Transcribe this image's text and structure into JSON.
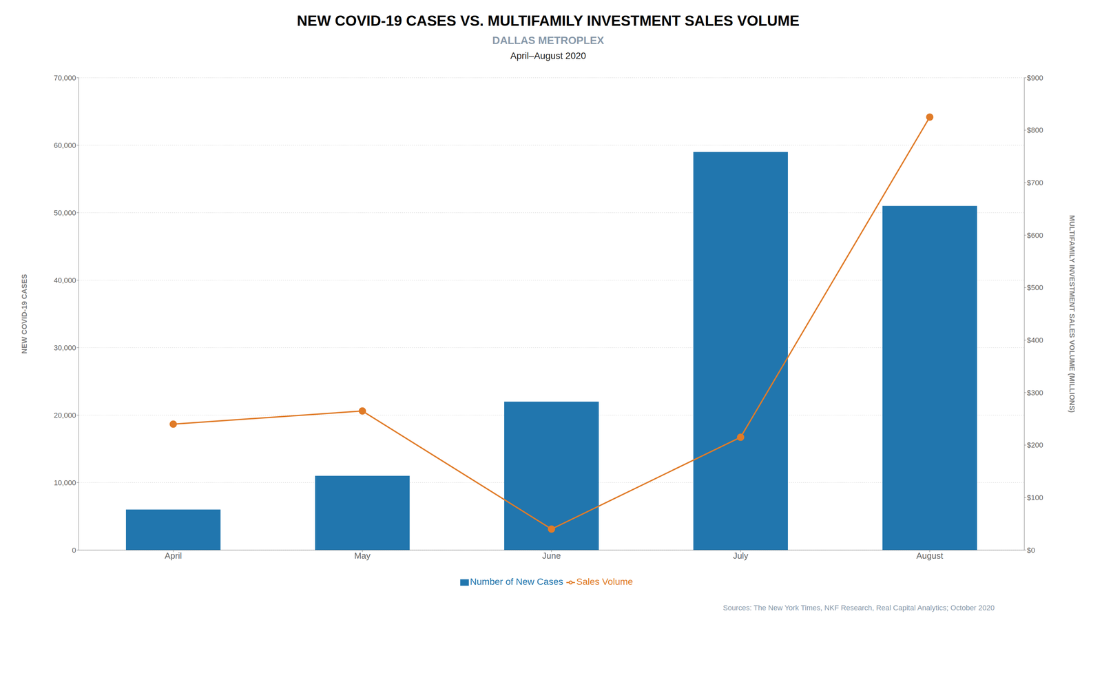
{
  "chart_data": {
    "type": "bar",
    "title": "NEW COVID-19 CASES VS. MULTIFAMILY INVESTMENT SALES VOLUME",
    "subtitle": "DALLAS METROPLEX",
    "annotations": [
      "April–August 2020",
      "Sources: The New York Times, NKF Research, Real Capital Analytics; October 2020"
    ],
    "categories": [
      "April",
      "May",
      "June",
      "July",
      "August"
    ],
    "series": [
      {
        "name": "Number of New Cases",
        "type": "bar",
        "color": "#2176ae",
        "values": [
          6000,
          11000,
          22000,
          59000,
          51000
        ]
      },
      {
        "name": "Sales Volume",
        "type": "line",
        "color": "#e07b28",
        "marker": "circle",
        "axis": "y2",
        "values": [
          240,
          265,
          40,
          215,
          825
        ]
      }
    ],
    "ylabel": "NEW COVID-19 CASES",
    "y2label": "MULTIFAMILY INVESTMENT SALES VOLUME (MILLIONS)",
    "ylim": [
      0,
      70000
    ],
    "yticks": [
      0,
      {
        "value": 10000,
        "label": "10,000"
      },
      {
        "value": 20000,
        "label": "20,000"
      },
      {
        "value": 30000,
        "label": "30,000"
      },
      {
        "value": 40000,
        "label": "40,000"
      },
      {
        "value": 50000,
        "label": "50,000"
      },
      {
        "value": 60000,
        "label": "60,000"
      },
      {
        "value": 70000,
        "label": "70,000"
      }
    ],
    "y2lim": [
      0,
      900
    ],
    "y2ticks": [
      {
        "value": 0,
        "label": "$0"
      },
      {
        "value": 100,
        "label": "$100"
      },
      {
        "value": 200,
        "label": "$200"
      },
      {
        "value": 300,
        "label": "$300"
      },
      {
        "value": 400,
        "label": "$400"
      },
      {
        "value": 500,
        "label": "$500"
      },
      {
        "value": 600,
        "label": "$600"
      },
      {
        "value": 700,
        "label": "$700"
      },
      {
        "value": 800,
        "label": "$800"
      },
      {
        "value": 900,
        "label": "$900"
      }
    ],
    "grid": true,
    "legend": "bottom"
  }
}
